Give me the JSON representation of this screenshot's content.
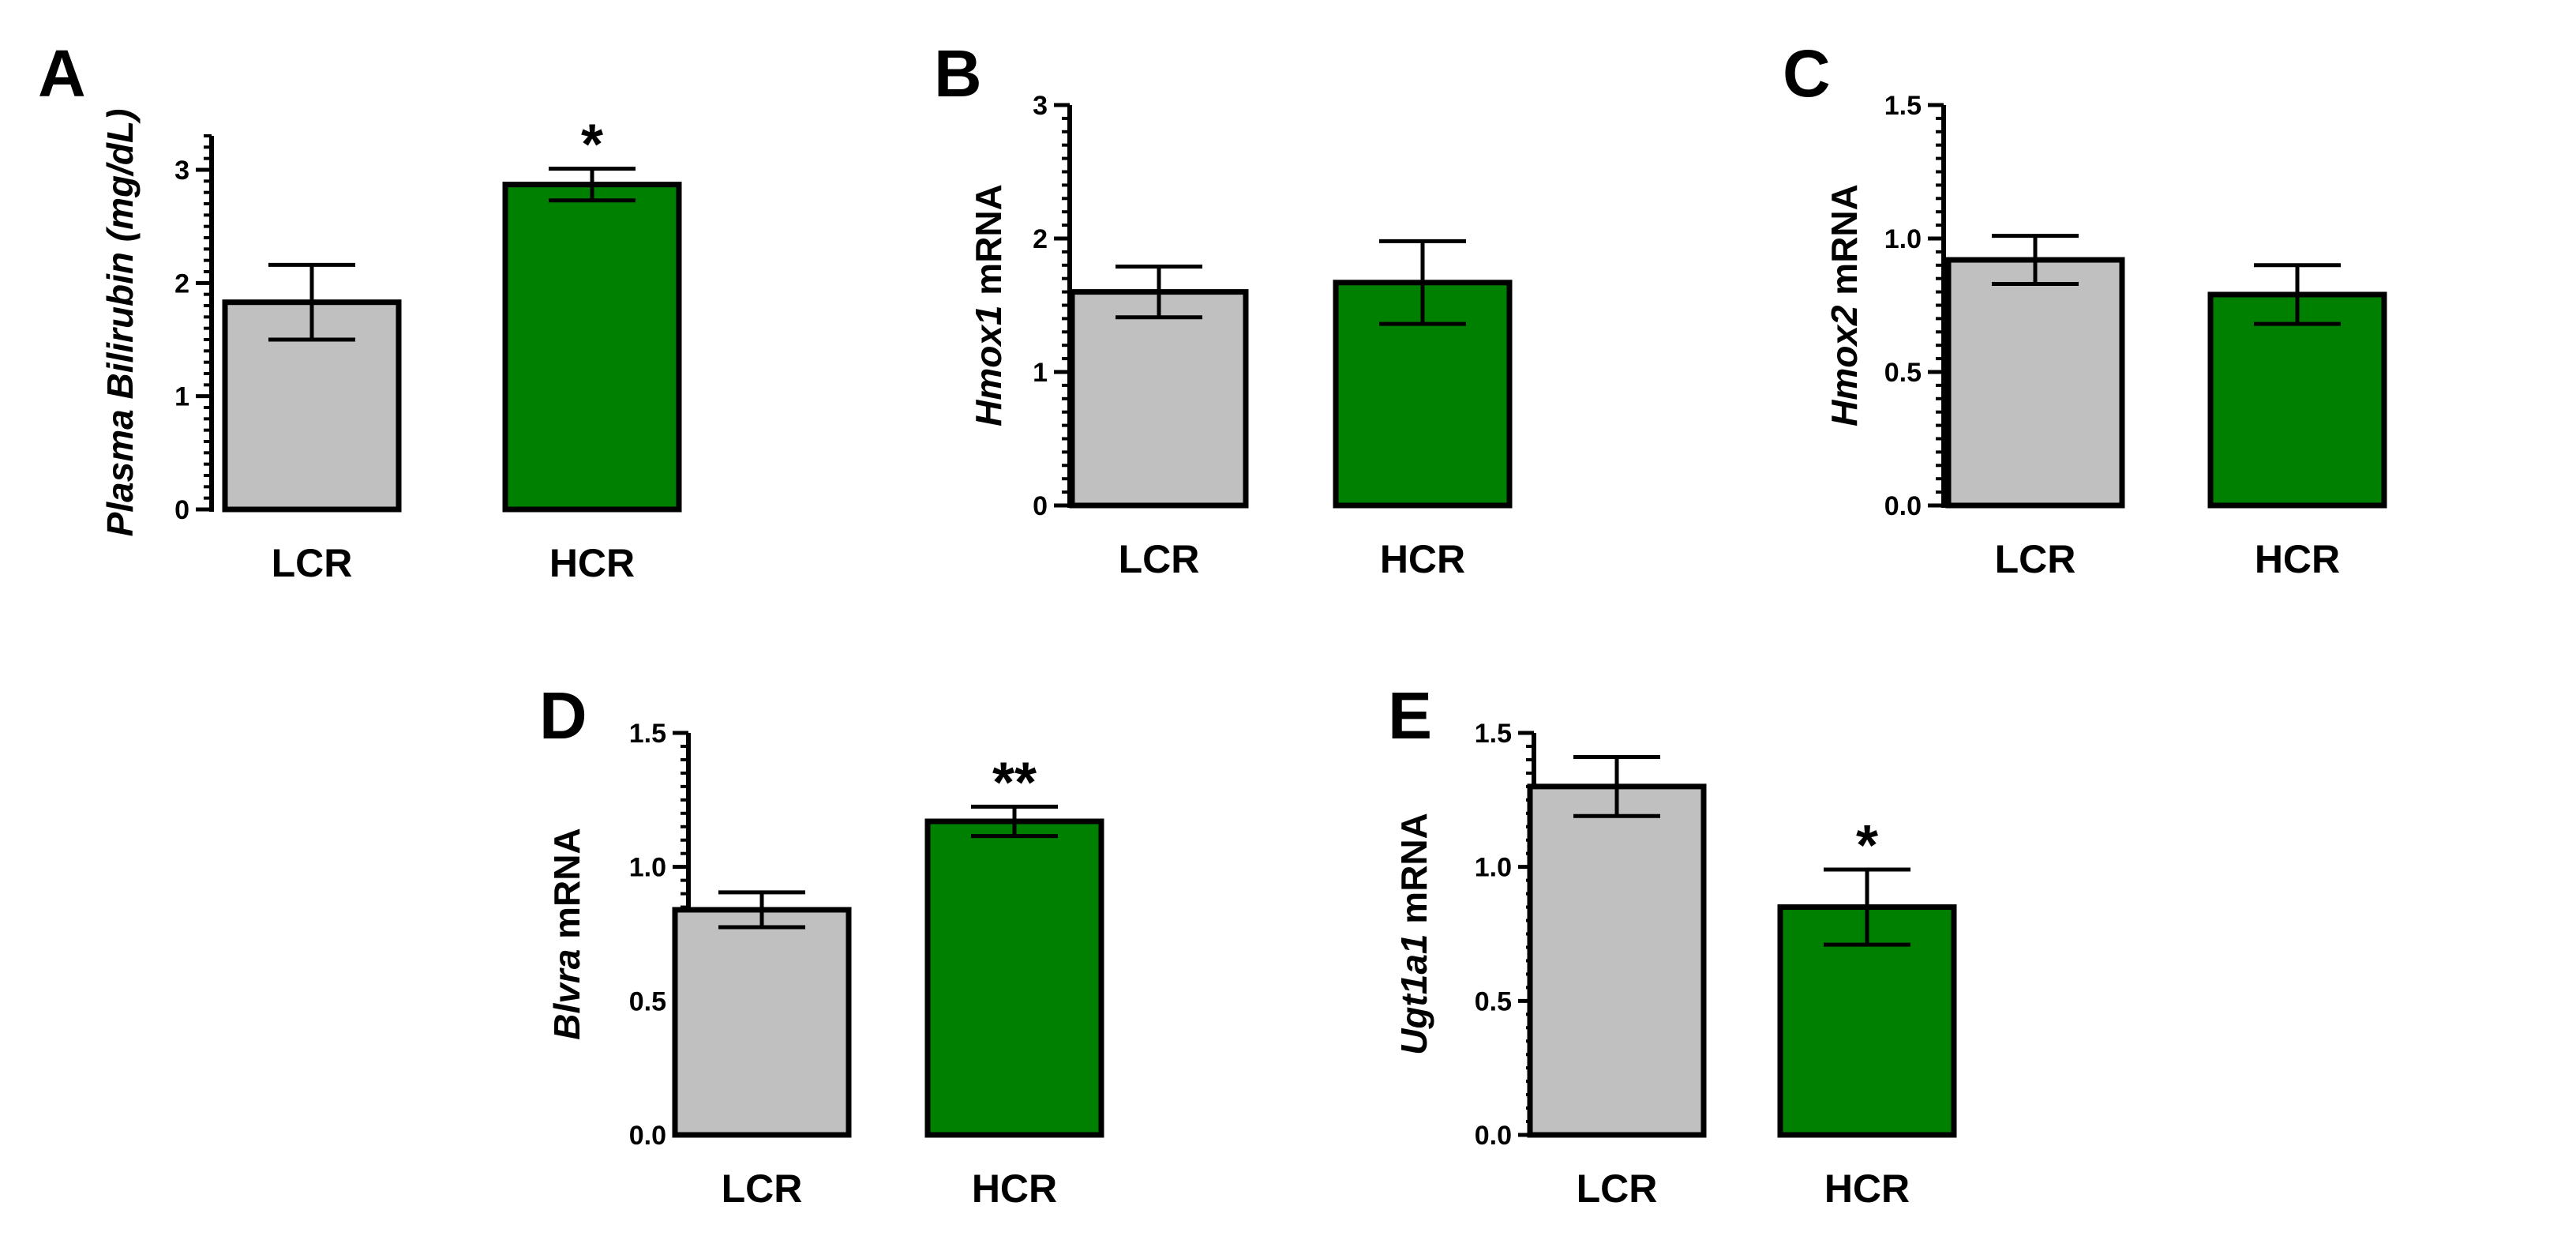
{
  "chart_data": [
    {
      "type": "bar",
      "panel": "A",
      "categories": [
        "LCR",
        "HCR"
      ],
      "values": [
        1.83,
        2.87
      ],
      "errors": [
        0.33,
        0.14
      ],
      "colors": [
        "#c0c0c0",
        "#008000"
      ],
      "significance": [
        "",
        "*"
      ],
      "ylabel": "Plasma Bilirubin (mg/dL)",
      "ylabel_parts": [
        {
          "text": "Plasma Bilirubin (mg/dL)",
          "italic": true
        }
      ],
      "ylim": [
        0,
        3.3
      ],
      "yticks": [
        0,
        1,
        2,
        3
      ],
      "ytick_labels": [
        "0",
        "1",
        "2",
        "3"
      ]
    },
    {
      "type": "bar",
      "panel": "B",
      "categories": [
        "LCR",
        "HCR"
      ],
      "values": [
        1.6,
        1.67
      ],
      "errors": [
        0.19,
        0.31
      ],
      "colors": [
        "#c0c0c0",
        "#008000"
      ],
      "significance": [
        "",
        ""
      ],
      "ylabel": "Hmox1 mRNA",
      "ylabel_parts": [
        {
          "text": "Hmox1",
          "italic": true
        },
        {
          "text": " mRNA",
          "italic": false
        }
      ],
      "ylim": [
        0,
        3
      ],
      "yticks": [
        0,
        1,
        2,
        3
      ],
      "ytick_labels": [
        "0",
        "1",
        "2",
        "3"
      ]
    },
    {
      "type": "bar",
      "panel": "C",
      "categories": [
        "LCR",
        "HCR"
      ],
      "values": [
        0.92,
        0.79
      ],
      "errors": [
        0.09,
        0.11
      ],
      "colors": [
        "#c0c0c0",
        "#008000"
      ],
      "significance": [
        "",
        ""
      ],
      "ylabel": "Hmox2 mRNA",
      "ylabel_parts": [
        {
          "text": "Hmox2",
          "italic": true
        },
        {
          "text": " mRNA",
          "italic": false
        }
      ],
      "ylim": [
        0,
        1.5
      ],
      "yticks": [
        0,
        0.5,
        1.0,
        1.5
      ],
      "ytick_labels": [
        "0.0",
        "0.5",
        "1.0",
        "1.5"
      ]
    },
    {
      "type": "bar",
      "panel": "D",
      "categories": [
        "LCR",
        "HCR"
      ],
      "values": [
        0.84,
        1.17
      ],
      "errors": [
        0.065,
        0.055
      ],
      "colors": [
        "#c0c0c0",
        "#008000"
      ],
      "significance": [
        "",
        "**"
      ],
      "ylabel": "Blvra mRNA",
      "ylabel_parts": [
        {
          "text": "Blvra",
          "italic": true
        },
        {
          "text": " mRNA",
          "italic": false
        }
      ],
      "ylim": [
        0,
        1.5
      ],
      "yticks": [
        0,
        0.5,
        1.0,
        1.5
      ],
      "ytick_labels": [
        "0.0",
        "0.5",
        "1.0",
        "1.5"
      ]
    },
    {
      "type": "bar",
      "panel": "E",
      "categories": [
        "LCR",
        "HCR"
      ],
      "values": [
        1.3,
        0.85
      ],
      "errors": [
        0.11,
        0.14
      ],
      "colors": [
        "#c0c0c0",
        "#008000"
      ],
      "significance": [
        "",
        "*"
      ],
      "ylabel": "Ugt1a1 mRNA",
      "ylabel_parts": [
        {
          "text": "Ugt1a1",
          "italic": true
        },
        {
          "text": " mRNA",
          "italic": false
        }
      ],
      "ylim": [
        0,
        1.5
      ],
      "yticks": [
        0,
        0.5,
        1.0,
        1.5
      ],
      "ytick_labels": [
        "0.0",
        "0.5",
        "1.0",
        "1.5"
      ]
    }
  ]
}
